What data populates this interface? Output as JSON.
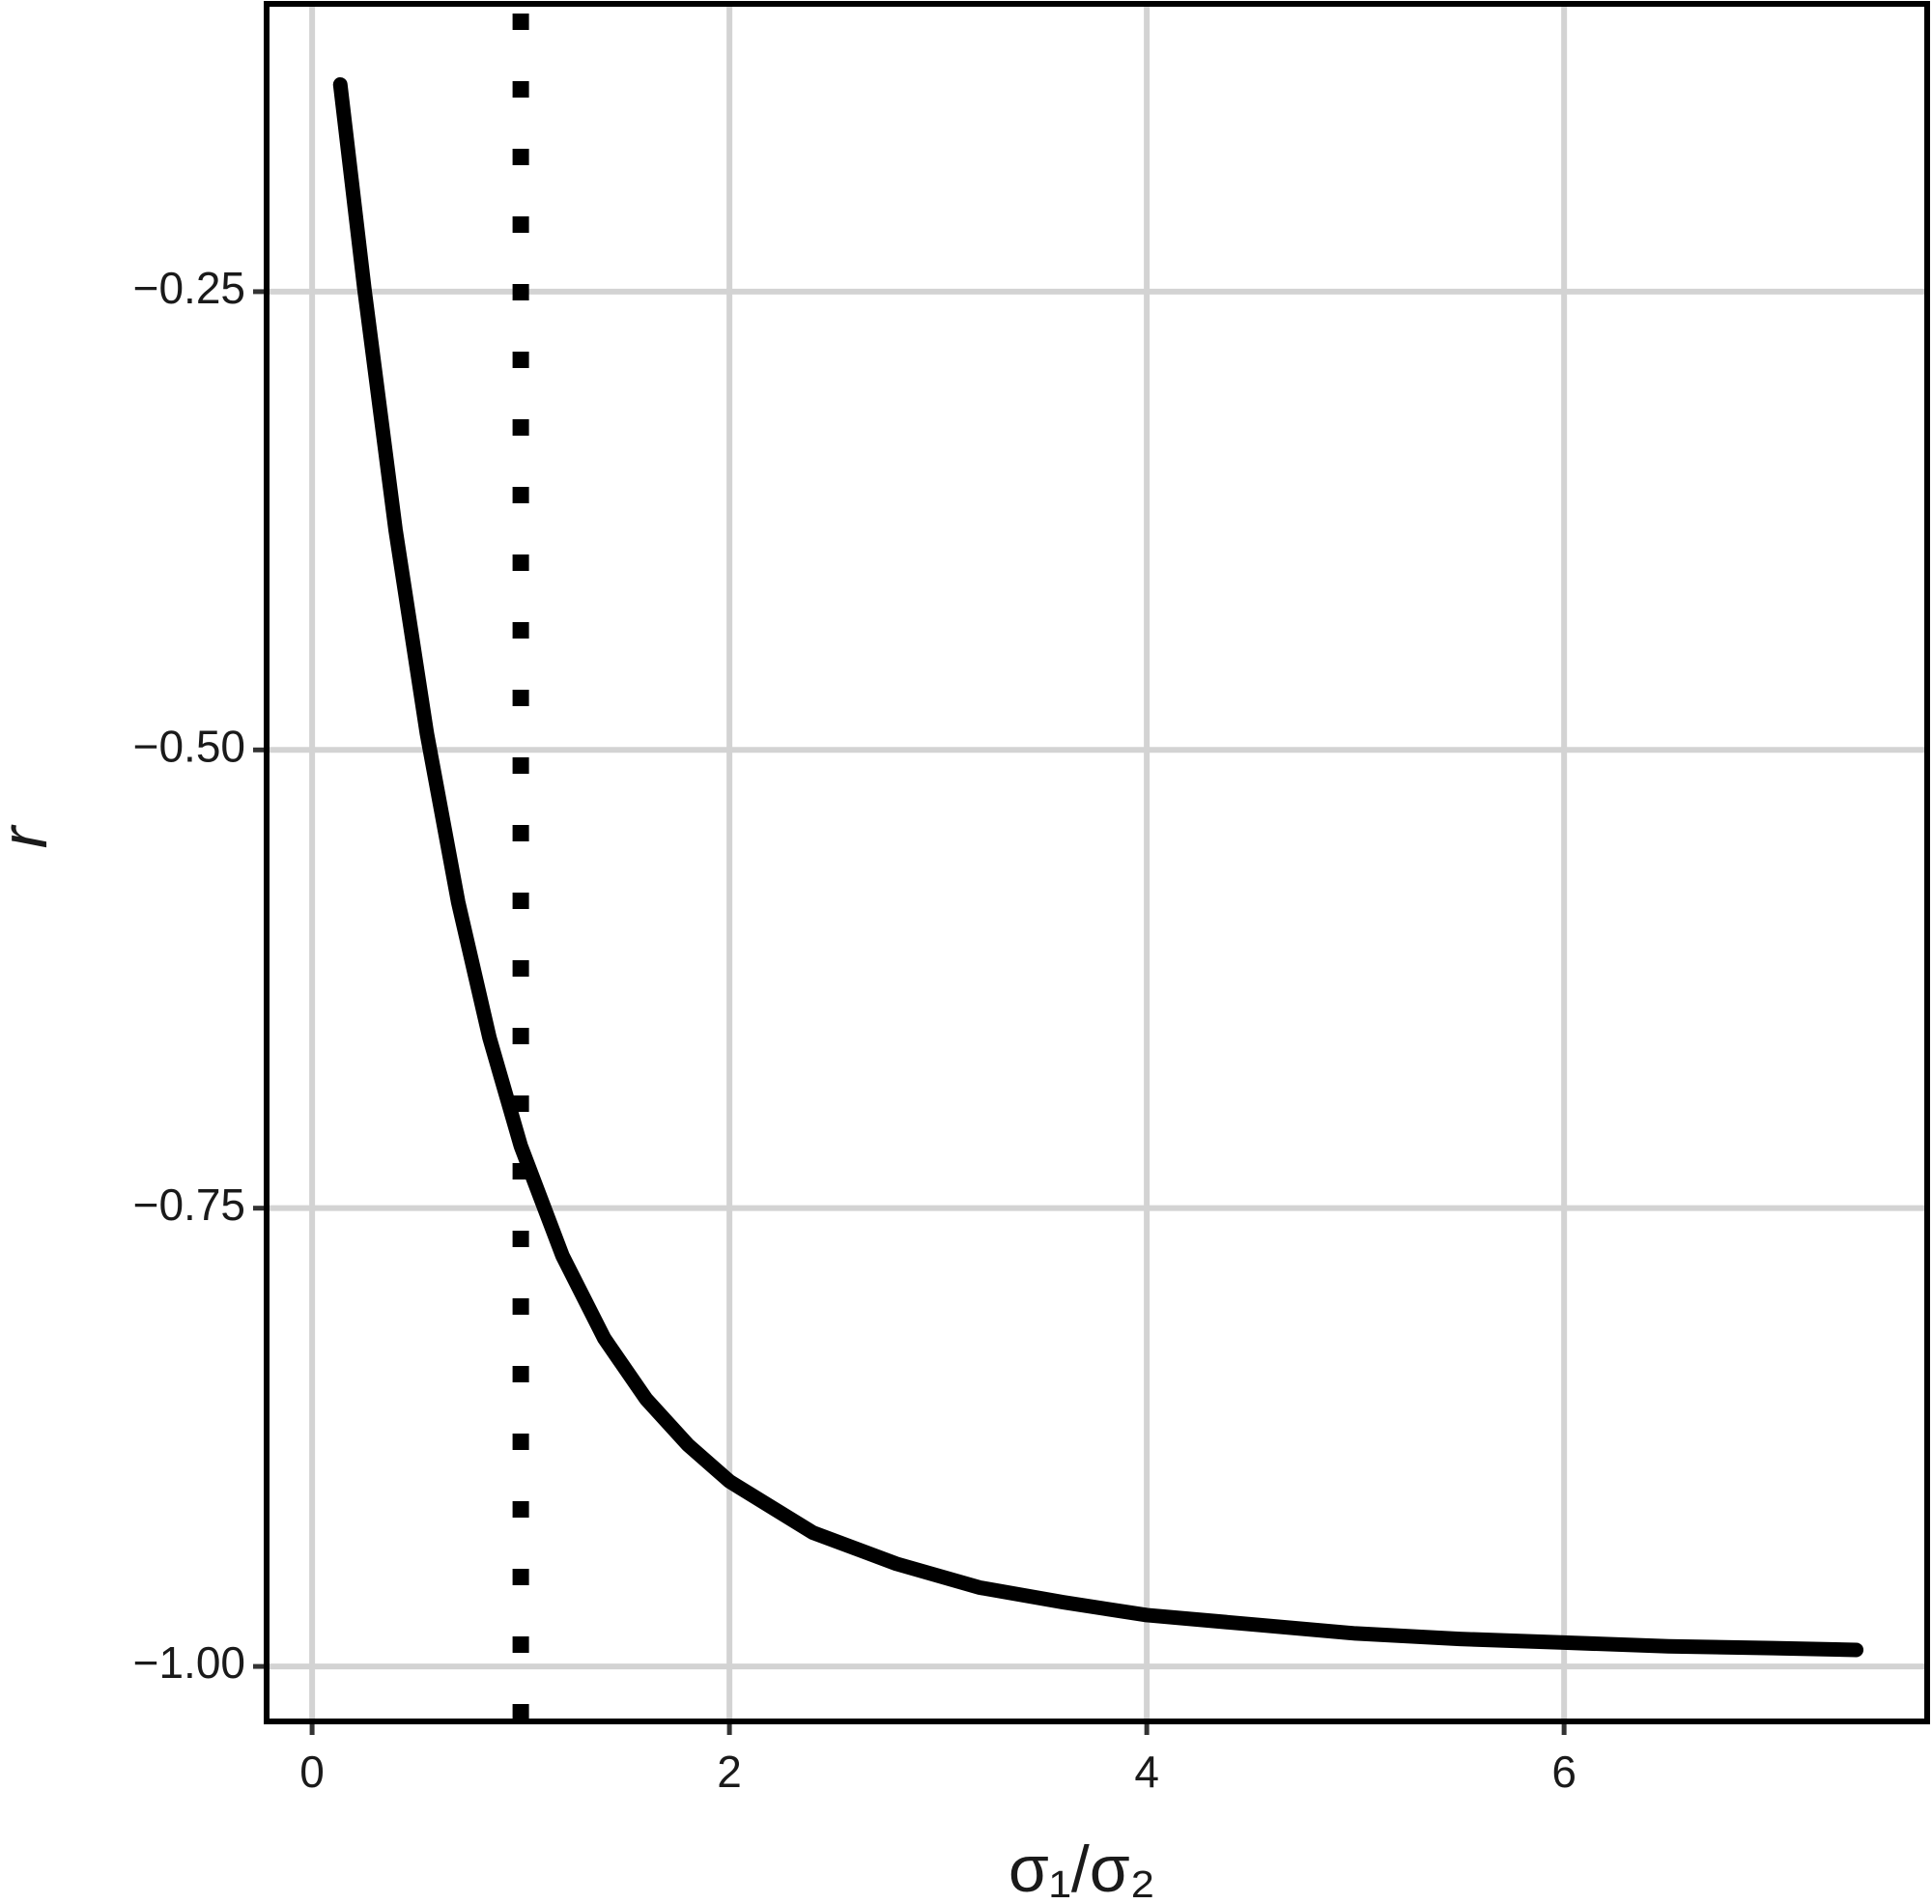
{
  "chart_data": {
    "type": "line",
    "x_label": "σ₁/σ₂",
    "y_label": "r",
    "x": [
      0.135,
      0.25,
      0.4,
      0.55,
      0.7,
      0.85,
      1,
      1.2,
      1.4,
      1.6,
      1.8,
      2,
      2.4,
      2.8,
      3.2,
      3.6,
      4,
      4.5,
      5,
      5.5,
      6,
      6.5,
      7,
      7.4
    ],
    "series": [
      {
        "color": "#000000",
        "values": [
          -0.137,
          -0.248,
          -0.38,
          -0.491,
          -0.583,
          -0.657,
          -0.716,
          -0.776,
          -0.821,
          -0.854,
          -0.879,
          -0.899,
          -0.927,
          -0.944,
          -0.957,
          -0.965,
          -0.972,
          -0.977,
          -0.982,
          -0.985,
          -0.987,
          -0.989,
          -0.99,
          -0.991
        ]
      }
    ],
    "vline": 1,
    "xlim": [
      -0.218,
      7.74
    ],
    "ylim": [
      -1.03,
      -0.093
    ],
    "xticks": [
      0,
      2,
      4,
      6
    ],
    "yticks": [
      {
        "value": -1.0,
        "label": "−1.00"
      },
      {
        "value": -0.75,
        "label": "−0.75"
      },
      {
        "value": -0.5,
        "label": "−0.50"
      },
      {
        "value": -0.25,
        "label": "−0.25"
      }
    ],
    "grid": true,
    "grid_color": "#d3d3d3"
  }
}
